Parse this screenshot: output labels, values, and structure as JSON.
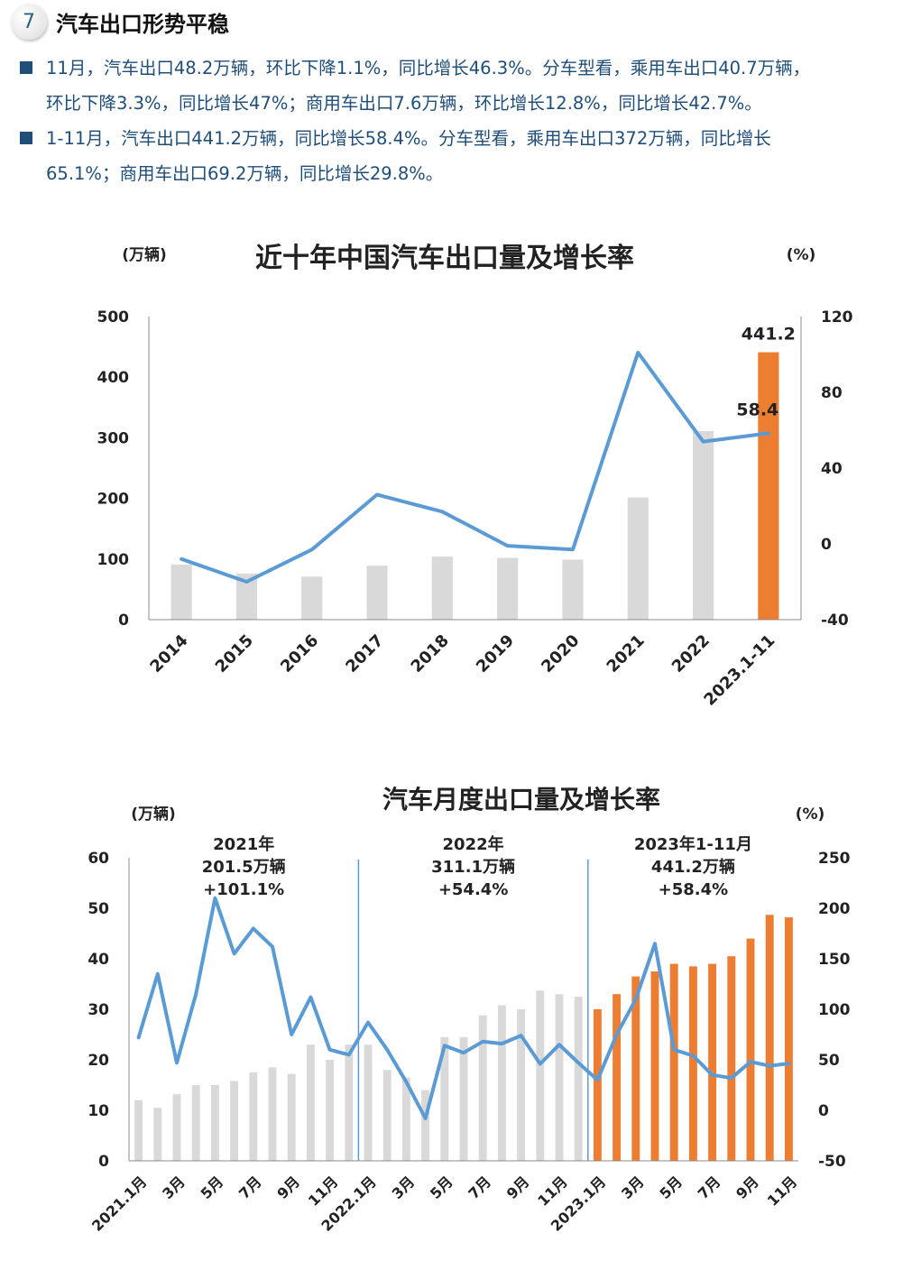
{
  "header": {
    "number": "7",
    "title": "汽车出口形势平稳"
  },
  "bullets": [
    {
      "line1": "11月，汽车出口48.2万辆，环比下降1.1%，同比增长46.3%。分车型看，乘用车出口40.7万辆，",
      "line2": "环比下降3.3%，同比增长47%；商用车出口7.6万辆，环比增长12.8%，同比增长42.7%。"
    },
    {
      "line1": "1-11月，汽车出口441.2万辆，同比增长58.4%。分车型看，乘用车出口372万辆，同比增长",
      "line2": "65.1%；商用车出口69.2万辆，同比增长29.8%。"
    }
  ],
  "chart_data": [
    {
      "type": "bar+line",
      "title": "近十年中国汽车出口量及增长率",
      "y_left_unit": "(万辆)",
      "y_right_unit": "(%)",
      "ylim_left": [
        0,
        500
      ],
      "ylim_right": [
        -40,
        120
      ],
      "yticks_left": [
        0,
        100,
        200,
        300,
        400,
        500
      ],
      "yticks_right": [
        -40,
        0,
        40,
        80,
        120
      ],
      "categories": [
        "2014",
        "2015",
        "2016",
        "2017",
        "2018",
        "2019",
        "2020",
        "2021",
        "2022",
        "2023.1-11"
      ],
      "bar_values": [
        91,
        76,
        71,
        89,
        104,
        102,
        99,
        201.5,
        311.1,
        441.2
      ],
      "line_values": [
        -8,
        -20,
        -3,
        26,
        17,
        -1,
        -3,
        101,
        54,
        58.4
      ],
      "bar_labels": {
        "9": "441.2"
      },
      "line_labels": {
        "9": "58.4"
      },
      "grid": false,
      "colors": {
        "bar": "#d9d9d9",
        "bar_highlight": "#ed7d31",
        "line": "#5b9bd5"
      }
    },
    {
      "type": "bar+line",
      "title": "汽车月度出口量及增长率",
      "y_left_unit": "(万辆)",
      "y_right_unit": "(%)",
      "ylim_left": [
        0,
        60
      ],
      "ylim_right": [
        -50,
        250
      ],
      "yticks_left": [
        0,
        10,
        20,
        30,
        40,
        50,
        60
      ],
      "yticks_right": [
        -50,
        0,
        50,
        100,
        150,
        200,
        250
      ],
      "categories": [
        "2021.1月",
        "",
        "3月",
        "",
        "5月",
        "",
        "7月",
        "",
        "9月",
        "",
        "11月",
        "",
        "2022.1月",
        "",
        "3月",
        "",
        "5月",
        "",
        "7月",
        "",
        "9月",
        "",
        "11月",
        "",
        "2023.1月",
        "",
        "3月",
        "",
        "5月",
        "",
        "7月",
        "",
        "9月",
        "",
        "11月"
      ],
      "bar_values": [
        12,
        10.5,
        13.2,
        15,
        15,
        15.8,
        17.5,
        18.5,
        17.2,
        23,
        20,
        23,
        23,
        18,
        16.5,
        14,
        24.5,
        24.5,
        28.8,
        30.8,
        30,
        33.7,
        33,
        32.5,
        30,
        33,
        36.5,
        37.5,
        39,
        38.5,
        39,
        40.5,
        44,
        48.7,
        48.2
      ],
      "line_values": [
        72,
        135,
        47,
        115,
        210,
        155,
        180,
        162,
        75,
        112,
        60,
        55,
        87,
        60,
        28,
        -8,
        64,
        57,
        68,
        66,
        74,
        46,
        65,
        47,
        30,
        75,
        110,
        165,
        60,
        54,
        35,
        32,
        48,
        44,
        46.3
      ],
      "highlight_from_index": 24,
      "separators_after_index": [
        11,
        23
      ],
      "period_annotations": [
        {
          "year": "2021年",
          "volume": "201.5万辆",
          "growth": "+101.1%"
        },
        {
          "year": "2022年",
          "volume": "311.1万辆",
          "growth": "+54.4%"
        },
        {
          "year": "2023年1-11月",
          "volume": "441.2万辆",
          "growth": "+58.4%"
        }
      ],
      "grid": false,
      "colors": {
        "bar": "#d9d9d9",
        "bar_highlight": "#ed7d31",
        "line": "#5b9bd5",
        "separator": "#5b9bd5"
      }
    }
  ]
}
